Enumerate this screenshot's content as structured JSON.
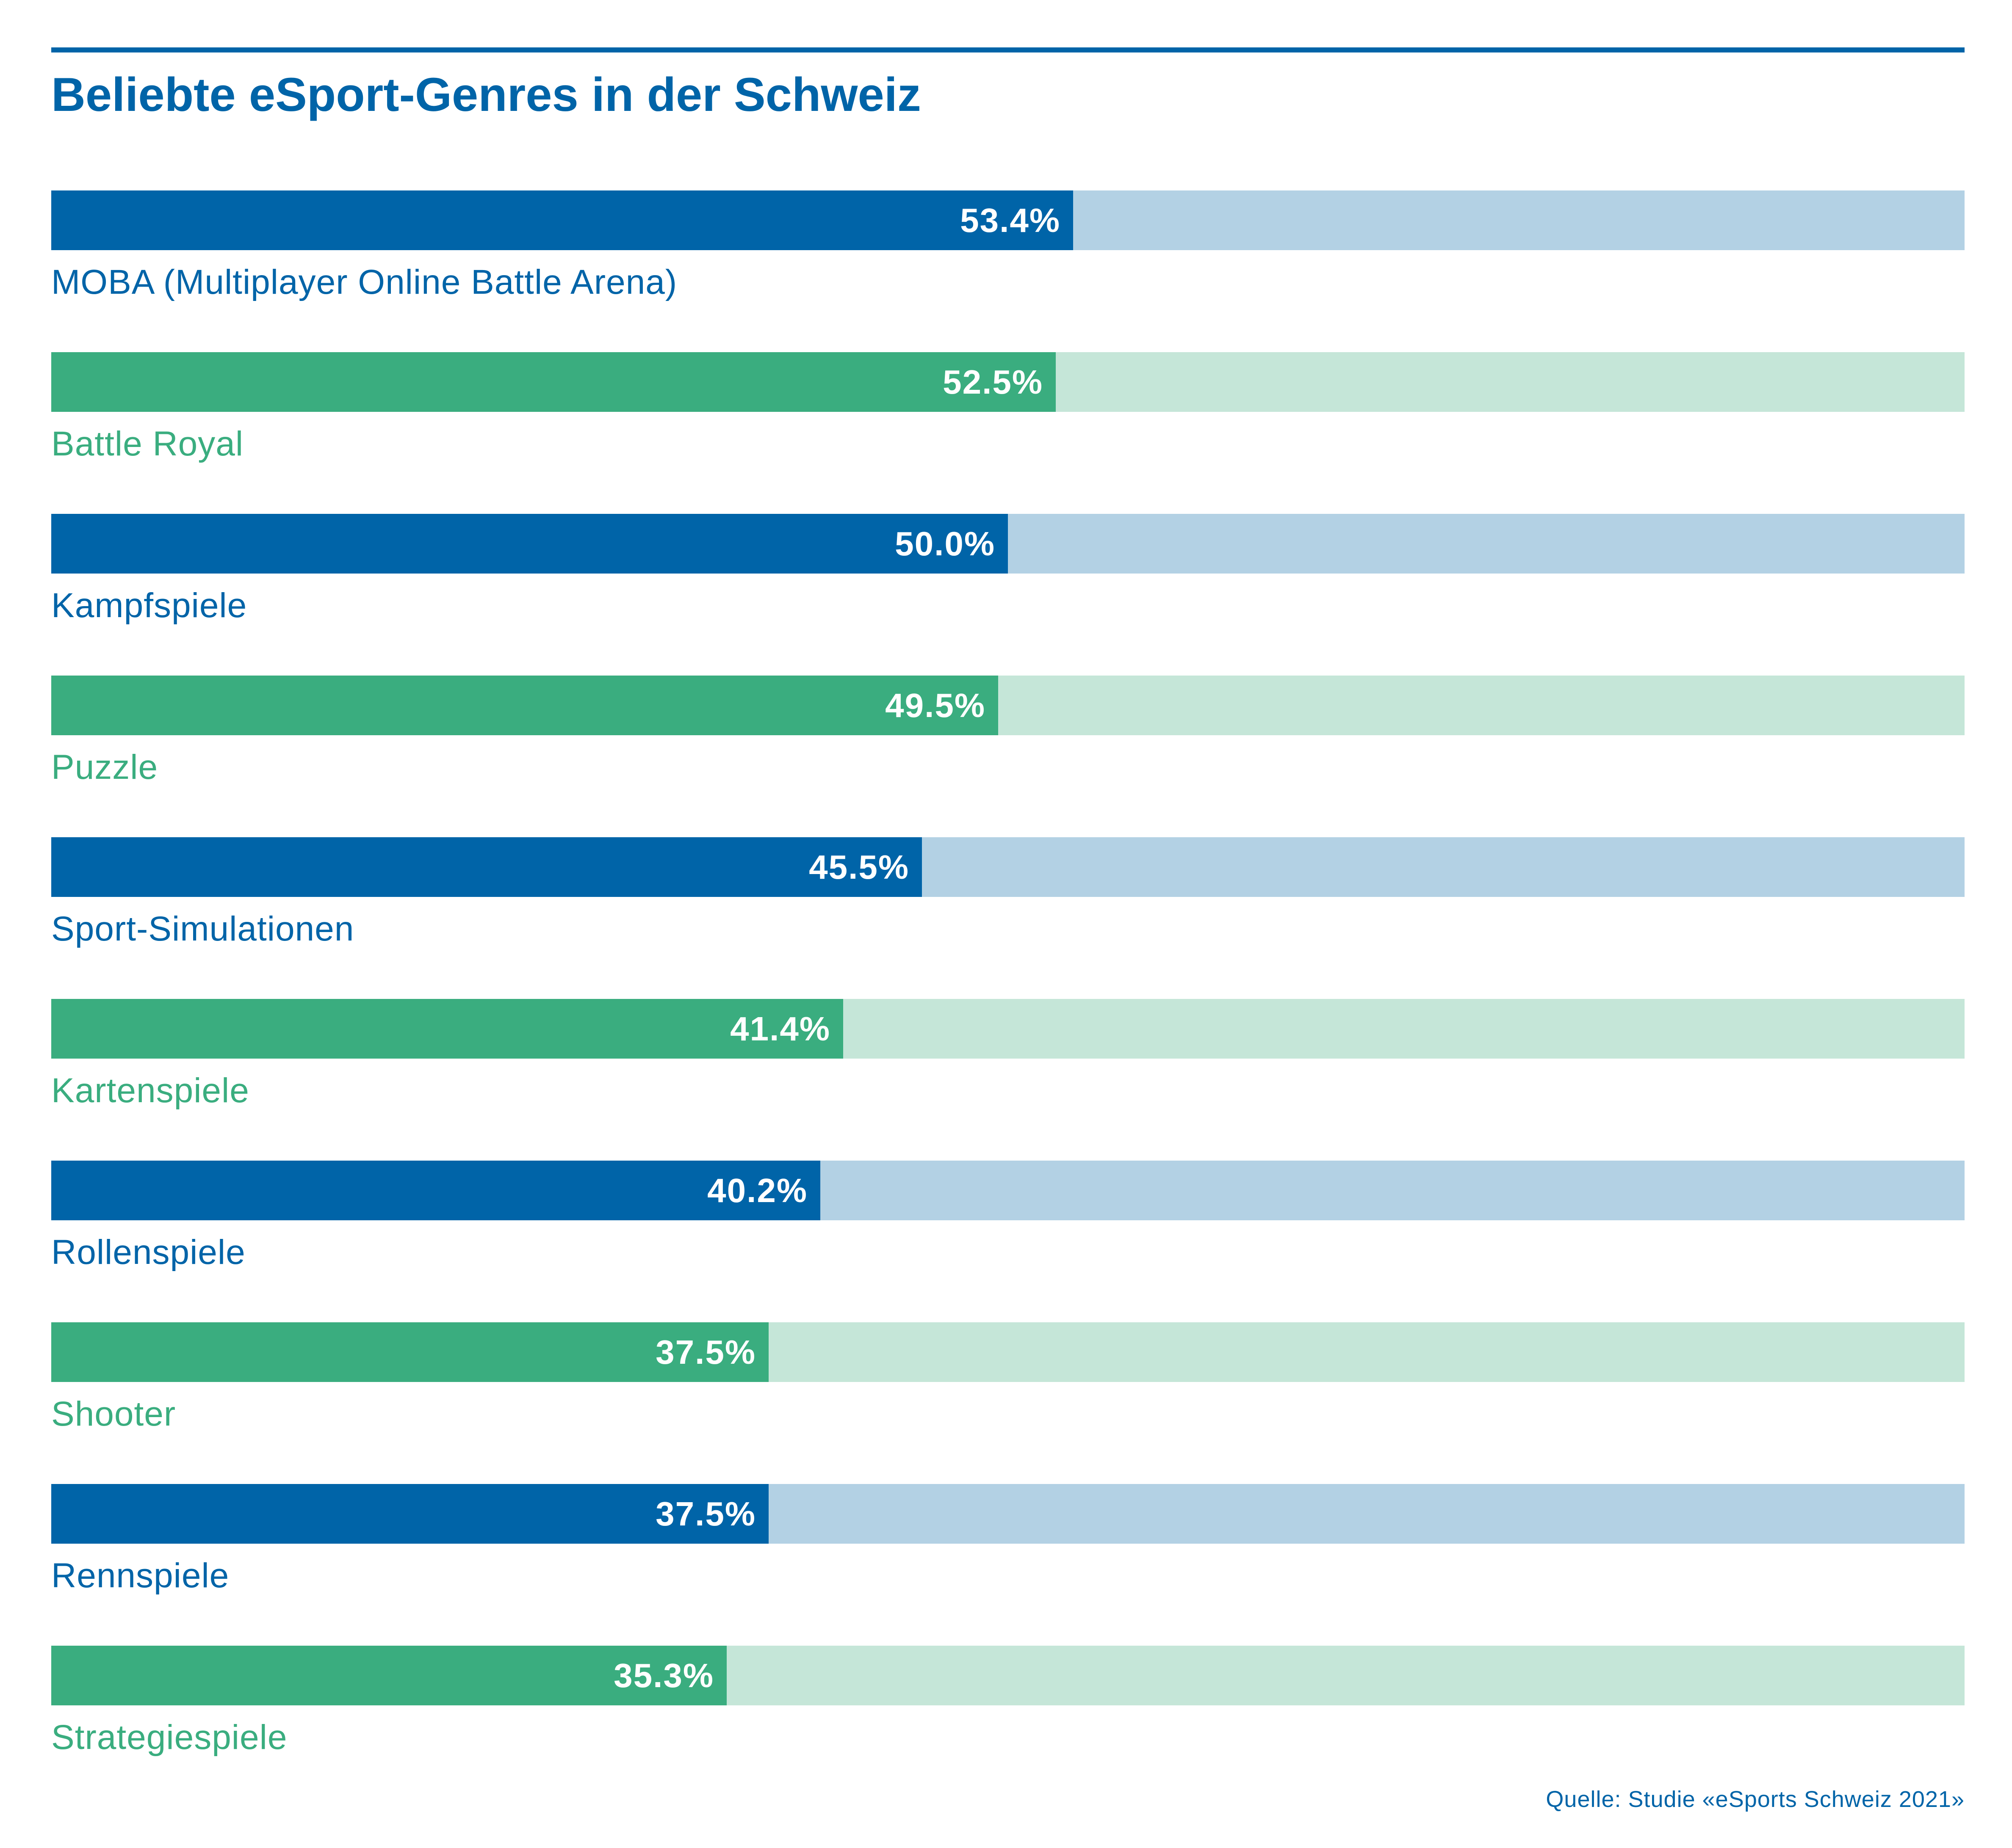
{
  "chart_data": {
    "type": "bar",
    "orientation": "horizontal",
    "title": "Beliebte eSport-Genres in der Schweiz",
    "categories": [
      "MOBA (Multiplayer Online Battle Arena)",
      "Battle Royal",
      "Kampfspiele",
      "Puzzle",
      "Sport-Simulationen",
      "Kartenspiele",
      "Rollenspiele",
      "Shooter",
      "Rennspiele",
      "Strategiespiele"
    ],
    "values": [
      53.4,
      52.5,
      50.0,
      49.5,
      45.5,
      41.4,
      40.2,
      37.5,
      37.5,
      35.3
    ],
    "value_labels": [
      "53.4%",
      "52.5%",
      "50.0%",
      "49.5%",
      "45.5%",
      "41.4%",
      "40.2%",
      "37.5%",
      "37.5%",
      "35.3%"
    ],
    "xlim": [
      0,
      100
    ],
    "grid": false,
    "legend": "none",
    "colors": {
      "blue": "#0064a8",
      "blue_track": "#b3d1e4",
      "green": "#3aad7f",
      "green_track": "#c5e6d8"
    },
    "source": "Quelle: Studie «eSports Schweiz 2021»"
  }
}
